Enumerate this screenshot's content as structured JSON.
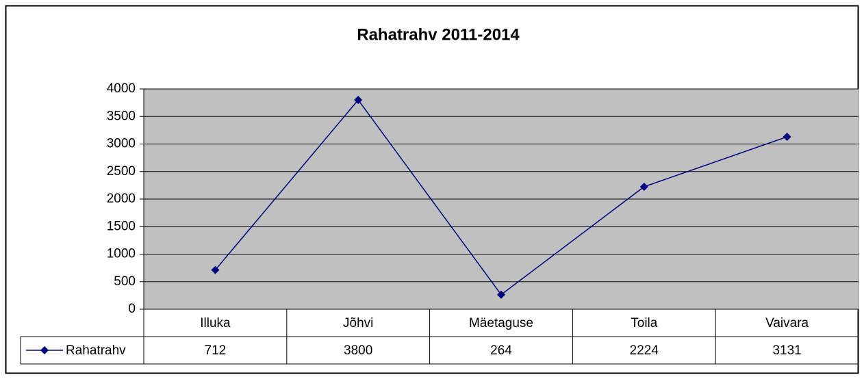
{
  "chart_data": {
    "type": "line",
    "title": "Rahatrahv 2011-2014",
    "categories": [
      "Illuka",
      "Jõhvi",
      "Mäetaguse",
      "Toila",
      "Vaivara"
    ],
    "series": [
      {
        "name": "Rahatrahv",
        "color": "#000080",
        "values": [
          712,
          3800,
          264,
          2224,
          3131
        ]
      }
    ],
    "ylim": [
      0,
      4000
    ],
    "yticks": [
      0,
      500,
      1000,
      1500,
      2000,
      2500,
      3000,
      3500,
      4000
    ],
    "grid": true
  }
}
